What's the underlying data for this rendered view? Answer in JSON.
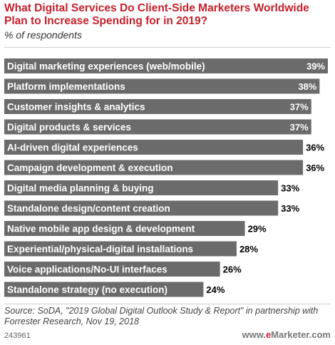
{
  "header": {
    "title": "What Digital Services Do Client-Side Marketers Worldwide Plan to Increase Spending for in 2019?",
    "subtitle": "% of respondents"
  },
  "chart_data": {
    "type": "bar",
    "orientation": "horizontal",
    "categories": [
      "Digital marketing experiences (web/mobile)",
      "Platform implementations",
      "Customer insights & analytics",
      "Digital products & services",
      "AI-driven digital experiences",
      "Campaign development & execution",
      "Digital media planning & buying",
      "Standalone design/content creation",
      "Native mobile app design & development",
      "Experiential/physical-digital installations",
      "Voice applications/No-UI interfaces",
      "Standalone strategy (no execution)"
    ],
    "values": [
      39,
      38,
      37,
      37,
      36,
      36,
      33,
      33,
      29,
      28,
      26,
      24
    ],
    "value_suffix": "%",
    "bar_color": "#6b6b6b",
    "grid": false
  },
  "footer": {
    "source": "Source: SoDA, \"2019 Global Digital Outlook Study & Report\" in partnership with Forrester Research, Nov 19, 2018",
    "chart_id": "243961",
    "brand_prefix": "www.",
    "brand_e": "e",
    "brand_rest": "Marketer.com"
  }
}
